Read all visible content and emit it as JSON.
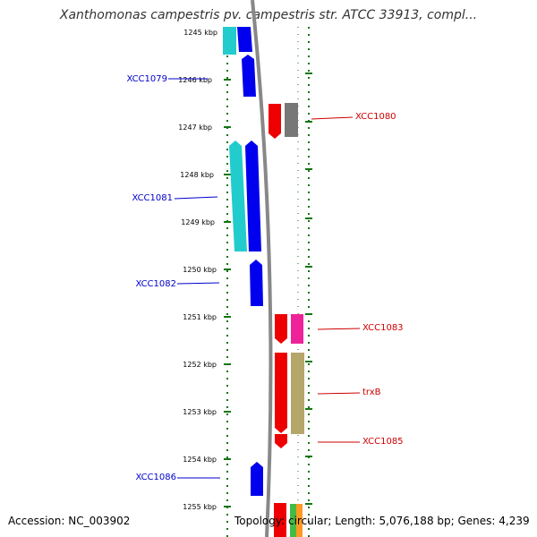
{
  "header": {
    "title": "Xanthomonas campestris pv. campestris str. ATCC 33913, compl..."
  },
  "footer": {
    "accession": "Accession: NC_003902",
    "topology": "Topology: circular; Length: 5,076,188 bp; Genes: 4,239"
  },
  "colors": {
    "forward_cds": "#0000ee",
    "forward_rna": "#22cccc",
    "reverse_cds": "#ee0000",
    "reverse_other_grey": "#777777",
    "reverse_other_pink": "#ee2299",
    "reverse_other_tan": "#b5a66a",
    "tick_green": "#117711",
    "forward_label": "#0000cc",
    "reverse_label": "#cc0000"
  },
  "ticks": [
    "1245 kbp",
    "1246 kbp",
    "1247 kbp",
    "1248 kbp",
    "1249 kbp",
    "1250 kbp",
    "1251 kbp",
    "1252 kbp",
    "1253 kbp",
    "1254 kbp",
    "1255 kbp"
  ],
  "forward_labels": [
    "XCC1079",
    "XCC1081",
    "XCC1082",
    "XCC1086"
  ],
  "reverse_labels": [
    "XCC1080",
    "XCC1083",
    "trxB",
    "XCC1085"
  ]
}
